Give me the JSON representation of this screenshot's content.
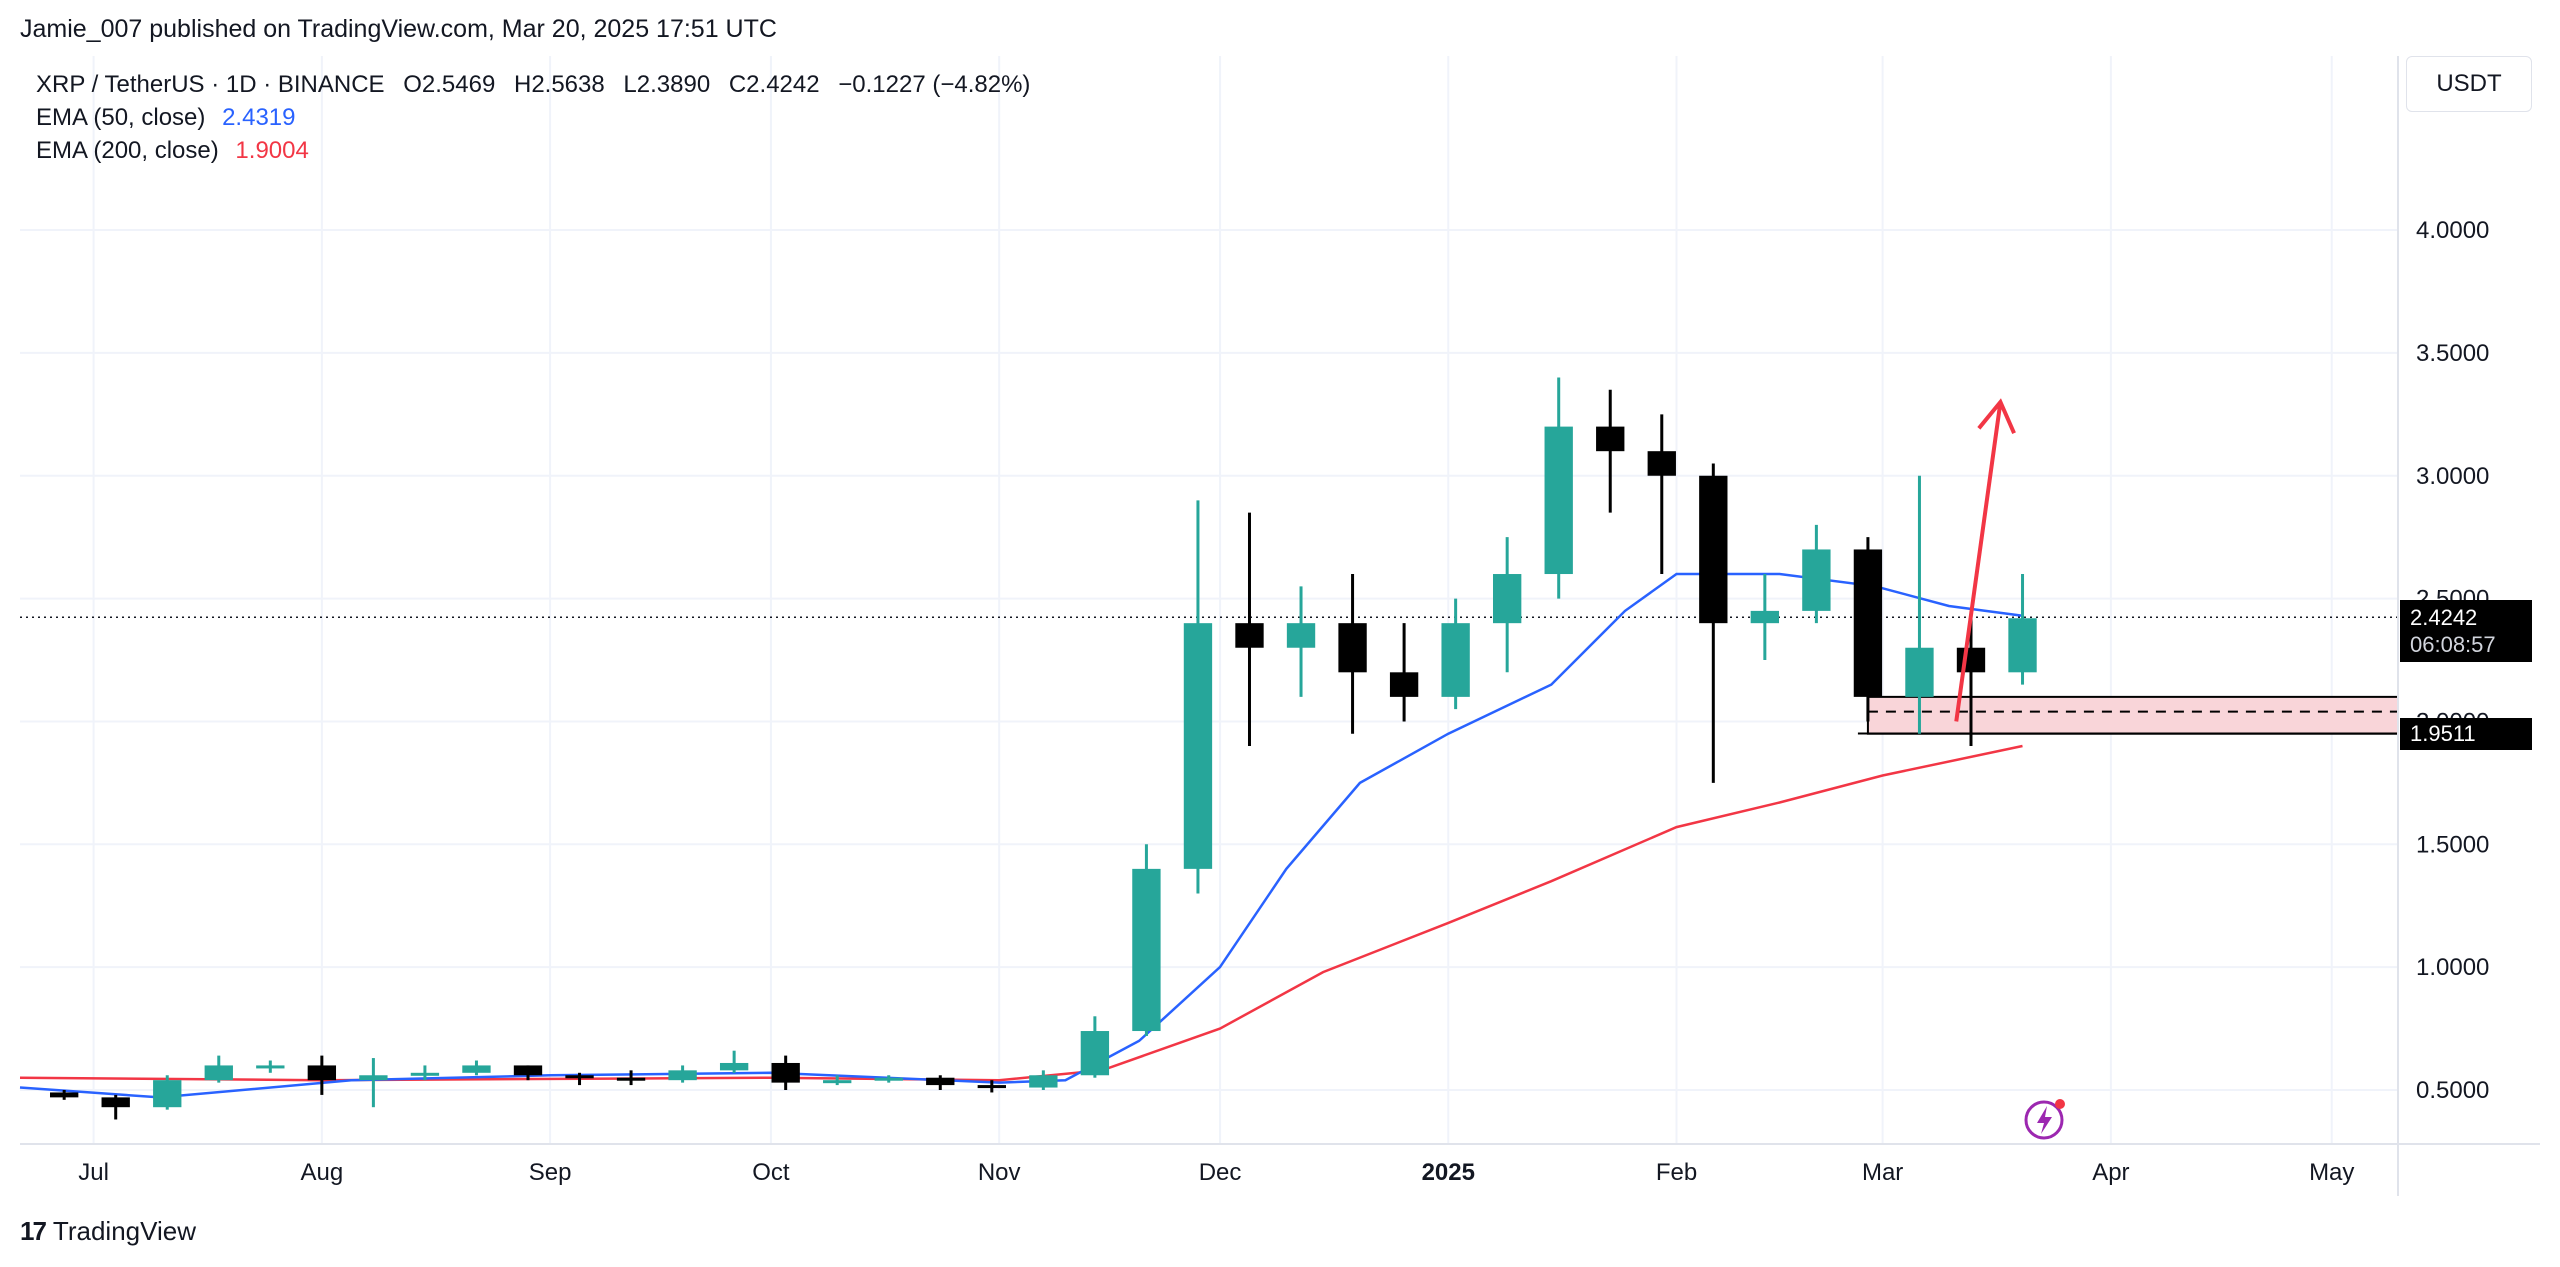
{
  "header": {
    "published": "Jamie_007 published on TradingView.com, Mar 20, 2025 17:51 UTC"
  },
  "legend": {
    "symbol": "XRP / TetherUS · 1D · BINANCE",
    "open": "O2.5469",
    "high": "H2.5638",
    "low": "L2.3890",
    "close": "C2.4242",
    "change": "−0.1227 (−4.82%)",
    "ema50_label": "EMA (50, close)",
    "ema50_value": "2.4319",
    "ema200_label": "EMA (200, close)",
    "ema200_value": "1.9004"
  },
  "currency": "USDT",
  "price_tag": {
    "price": "2.4242",
    "countdown": "06:08:57"
  },
  "level_tag": "1.9511",
  "footer": {
    "brand": "TradingView",
    "mark": "17"
  },
  "colors": {
    "up": "#26a69a",
    "down": "#000000",
    "ema50": "#2962ff",
    "ema200": "#f23645",
    "zone_fill": "#f9d5d9",
    "arrow": "#f23645"
  },
  "icons": {
    "bolt": "lightning-bolt-icon"
  },
  "chart_data": {
    "type": "candlestick",
    "x_axis_labels": [
      "Jul",
      "Aug",
      "Sep",
      "Oct",
      "Nov",
      "Dec",
      "2025",
      "Feb",
      "Mar",
      "Apr",
      "May"
    ],
    "y_ticks": [
      "0.5000",
      "1.0000",
      "1.5000",
      "2.0000",
      "2.5000",
      "3.0000",
      "3.5000",
      "4.0000"
    ],
    "y_range": [
      0.3,
      4.5
    ],
    "x_range_days": [
      "2024-06-21",
      "2025-05-10"
    ],
    "candles_weekly_ohlc": [
      [
        "2024-06-24",
        0.49,
        0.5,
        0.46,
        0.47
      ],
      [
        "2024-07-01",
        0.47,
        0.48,
        0.38,
        0.43
      ],
      [
        "2024-07-08",
        0.43,
        0.56,
        0.42,
        0.54
      ],
      [
        "2024-07-15",
        0.54,
        0.64,
        0.53,
        0.6
      ],
      [
        "2024-07-22",
        0.6,
        0.62,
        0.57,
        0.6
      ],
      [
        "2024-07-29",
        0.6,
        0.64,
        0.48,
        0.54
      ],
      [
        "2024-08-05",
        0.54,
        0.63,
        0.43,
        0.56
      ],
      [
        "2024-08-12",
        0.56,
        0.6,
        0.54,
        0.57
      ],
      [
        "2024-08-19",
        0.57,
        0.62,
        0.56,
        0.6
      ],
      [
        "2024-08-26",
        0.6,
        0.6,
        0.54,
        0.56
      ],
      [
        "2024-09-02",
        0.56,
        0.57,
        0.52,
        0.55
      ],
      [
        "2024-09-09",
        0.55,
        0.58,
        0.52,
        0.54
      ],
      [
        "2024-09-16",
        0.54,
        0.6,
        0.53,
        0.58
      ],
      [
        "2024-09-23",
        0.58,
        0.66,
        0.57,
        0.61
      ],
      [
        "2024-09-30",
        0.61,
        0.64,
        0.5,
        0.53
      ],
      [
        "2024-10-07",
        0.53,
        0.56,
        0.52,
        0.54
      ],
      [
        "2024-10-14",
        0.54,
        0.56,
        0.53,
        0.55
      ],
      [
        "2024-10-21",
        0.55,
        0.56,
        0.5,
        0.52
      ],
      [
        "2024-10-28",
        0.52,
        0.54,
        0.49,
        0.51
      ],
      [
        "2024-11-04",
        0.51,
        0.58,
        0.5,
        0.56
      ],
      [
        "2024-11-11",
        0.56,
        0.8,
        0.55,
        0.74
      ],
      [
        "2024-11-18",
        0.74,
        1.5,
        0.72,
        1.4
      ],
      [
        "2024-11-25",
        1.4,
        2.9,
        1.3,
        2.4
      ],
      [
        "2024-12-02",
        2.4,
        2.85,
        1.9,
        2.3
      ],
      [
        "2024-12-09",
        2.3,
        2.55,
        2.1,
        2.4
      ],
      [
        "2024-12-16",
        2.4,
        2.6,
        1.95,
        2.2
      ],
      [
        "2024-12-23",
        2.2,
        2.4,
        2.0,
        2.1
      ],
      [
        "2024-12-30",
        2.1,
        2.5,
        2.05,
        2.4
      ],
      [
        "2025-01-06",
        2.4,
        2.75,
        2.2,
        2.6
      ],
      [
        "2025-01-13",
        2.6,
        3.4,
        2.5,
        3.2
      ],
      [
        "2025-01-20",
        3.2,
        3.35,
        2.85,
        3.1
      ],
      [
        "2025-01-27",
        3.1,
        3.25,
        2.6,
        3.0
      ],
      [
        "2025-02-03",
        3.0,
        3.05,
        1.75,
        2.4
      ],
      [
        "2025-02-10",
        2.4,
        2.6,
        2.25,
        2.45
      ],
      [
        "2025-02-17",
        2.45,
        2.8,
        2.4,
        2.7
      ],
      [
        "2025-02-24",
        2.7,
        2.75,
        2.0,
        2.1
      ],
      [
        "2025-03-03",
        2.1,
        3.0,
        1.95,
        2.3
      ],
      [
        "2025-03-10",
        2.3,
        2.45,
        1.9,
        2.2
      ],
      [
        "2025-03-17",
        2.2,
        2.6,
        2.15,
        2.42
      ]
    ],
    "ema50_points": [
      [
        "2024-06-21",
        0.51
      ],
      [
        "2024-07-10",
        0.47
      ],
      [
        "2024-08-05",
        0.54
      ],
      [
        "2024-09-01",
        0.56
      ],
      [
        "2024-10-01",
        0.57
      ],
      [
        "2024-11-01",
        0.53
      ],
      [
        "2024-11-10",
        0.54
      ],
      [
        "2024-11-20",
        0.7
      ],
      [
        "2024-12-01",
        1.0
      ],
      [
        "2024-12-10",
        1.4
      ],
      [
        "2024-12-20",
        1.75
      ],
      [
        "2025-01-01",
        1.95
      ],
      [
        "2025-01-15",
        2.15
      ],
      [
        "2025-01-25",
        2.45
      ],
      [
        "2025-02-01",
        2.6
      ],
      [
        "2025-02-15",
        2.6
      ],
      [
        "2025-02-28",
        2.55
      ],
      [
        "2025-03-10",
        2.47
      ],
      [
        "2025-03-20",
        2.43
      ]
    ],
    "ema200_points": [
      [
        "2024-06-21",
        0.55
      ],
      [
        "2024-08-01",
        0.54
      ],
      [
        "2024-10-01",
        0.55
      ],
      [
        "2024-11-01",
        0.54
      ],
      [
        "2024-11-15",
        0.58
      ],
      [
        "2024-12-01",
        0.75
      ],
      [
        "2024-12-15",
        0.98
      ],
      [
        "2025-01-01",
        1.18
      ],
      [
        "2025-01-15",
        1.35
      ],
      [
        "2025-02-01",
        1.57
      ],
      [
        "2025-02-15",
        1.67
      ],
      [
        "2025-03-01",
        1.78
      ],
      [
        "2025-03-20",
        1.9
      ]
    ],
    "last_price": 2.4242,
    "support_zone": {
      "from": 1.95,
      "to": 2.1,
      "dashed_level": 2.04,
      "start": "2025-02-27"
    },
    "level_line": 1.9511,
    "arrow": {
      "from": [
        "2025-03-11",
        2.0
      ],
      "to": [
        "2025-03-17",
        3.3
      ]
    }
  }
}
